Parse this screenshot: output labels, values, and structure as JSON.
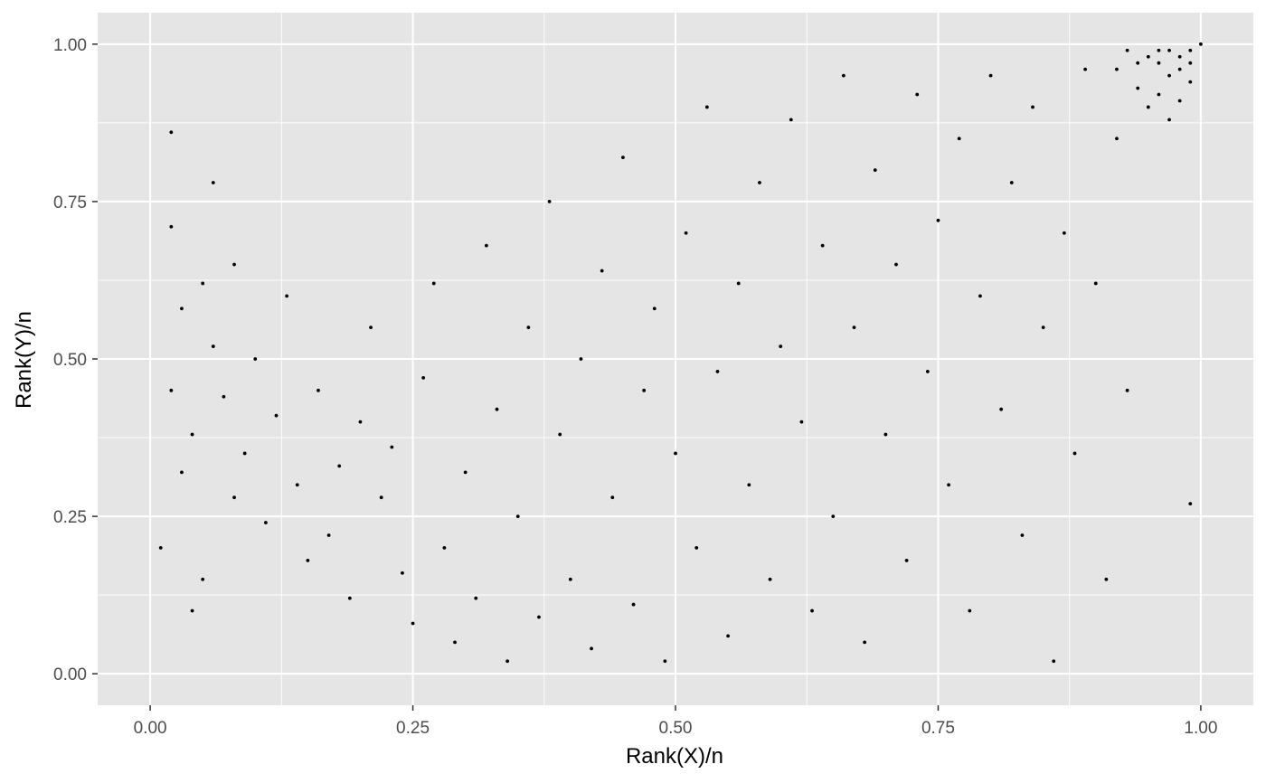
{
  "chart_data": {
    "type": "scatter",
    "title": "",
    "xlabel": "Rank(X)/n",
    "ylabel": "Rank(Y)/n",
    "xlim": [
      -0.05,
      1.05
    ],
    "ylim": [
      -0.05,
      1.05
    ],
    "x_ticks": [
      0,
      0.25,
      0.5,
      0.75,
      1
    ],
    "x_tick_labels": [
      "0.00",
      "0.25",
      "0.50",
      "0.75",
      "1.00"
    ],
    "y_ticks": [
      0,
      0.25,
      0.5,
      0.75,
      1
    ],
    "y_tick_labels": [
      "0.00",
      "0.25",
      "0.50",
      "0.75",
      "1.00"
    ],
    "grid": true,
    "legend": "none",
    "panel_background": "#e5e5e5",
    "grid_color": "#ffffff",
    "point_color": "#000000",
    "points": [
      [
        0.02,
        0.45
      ],
      [
        0.03,
        0.32
      ],
      [
        0.05,
        0.62
      ],
      [
        0.04,
        0.38
      ],
      [
        0.06,
        0.52
      ],
      [
        0.08,
        0.28
      ],
      [
        0.02,
        0.71
      ],
      [
        0.01,
        0.2
      ],
      [
        0.07,
        0.44
      ],
      [
        0.09,
        0.35
      ],
      [
        0.03,
        0.58
      ],
      [
        0.11,
        0.24
      ],
      [
        0.05,
        0.15
      ],
      [
        0.1,
        0.5
      ],
      [
        0.12,
        0.41
      ],
      [
        0.14,
        0.3
      ],
      [
        0.02,
        0.86
      ],
      [
        0.06,
        0.78
      ],
      [
        0.15,
        0.18
      ],
      [
        0.08,
        0.65
      ],
      [
        0.13,
        0.6
      ],
      [
        0.16,
        0.45
      ],
      [
        0.18,
        0.33
      ],
      [
        0.04,
        0.1
      ],
      [
        0.17,
        0.22
      ],
      [
        0.19,
        0.12
      ],
      [
        0.2,
        0.4
      ],
      [
        0.22,
        0.28
      ],
      [
        0.21,
        0.55
      ],
      [
        0.24,
        0.16
      ],
      [
        0.23,
        0.36
      ],
      [
        0.25,
        0.08
      ],
      [
        0.26,
        0.47
      ],
      [
        0.28,
        0.2
      ],
      [
        0.27,
        0.62
      ],
      [
        0.29,
        0.05
      ],
      [
        0.3,
        0.32
      ],
      [
        0.31,
        0.12
      ],
      [
        0.32,
        0.68
      ],
      [
        0.33,
        0.42
      ],
      [
        0.34,
        0.02
      ],
      [
        0.35,
        0.25
      ],
      [
        0.36,
        0.55
      ],
      [
        0.37,
        0.09
      ],
      [
        0.38,
        0.75
      ],
      [
        0.39,
        0.38
      ],
      [
        0.4,
        0.15
      ],
      [
        0.41,
        0.5
      ],
      [
        0.42,
        0.04
      ],
      [
        0.43,
        0.64
      ],
      [
        0.44,
        0.28
      ],
      [
        0.45,
        0.82
      ],
      [
        0.46,
        0.11
      ],
      [
        0.47,
        0.45
      ],
      [
        0.48,
        0.58
      ],
      [
        0.49,
        0.02
      ],
      [
        0.5,
        0.35
      ],
      [
        0.51,
        0.7
      ],
      [
        0.52,
        0.2
      ],
      [
        0.53,
        0.9
      ],
      [
        0.54,
        0.48
      ],
      [
        0.55,
        0.06
      ],
      [
        0.56,
        0.62
      ],
      [
        0.57,
        0.3
      ],
      [
        0.58,
        0.78
      ],
      [
        0.59,
        0.15
      ],
      [
        0.6,
        0.52
      ],
      [
        0.61,
        0.88
      ],
      [
        0.62,
        0.4
      ],
      [
        0.63,
        0.1
      ],
      [
        0.64,
        0.68
      ],
      [
        0.65,
        0.25
      ],
      [
        0.66,
        0.95
      ],
      [
        0.67,
        0.55
      ],
      [
        0.68,
        0.05
      ],
      [
        0.69,
        0.8
      ],
      [
        0.7,
        0.38
      ],
      [
        0.71,
        0.65
      ],
      [
        0.72,
        0.18
      ],
      [
        0.73,
        0.92
      ],
      [
        0.74,
        0.48
      ],
      [
        0.75,
        0.72
      ],
      [
        0.76,
        0.3
      ],
      [
        0.77,
        0.85
      ],
      [
        0.78,
        0.1
      ],
      [
        0.79,
        0.6
      ],
      [
        0.8,
        0.95
      ],
      [
        0.81,
        0.42
      ],
      [
        0.82,
        0.78
      ],
      [
        0.83,
        0.22
      ],
      [
        0.84,
        0.9
      ],
      [
        0.85,
        0.55
      ],
      [
        0.86,
        0.02
      ],
      [
        0.87,
        0.7
      ],
      [
        0.88,
        0.35
      ],
      [
        0.89,
        0.96
      ],
      [
        0.9,
        0.62
      ],
      [
        0.91,
        0.15
      ],
      [
        0.92,
        0.85
      ],
      [
        0.93,
        0.45
      ],
      [
        0.94,
        0.93
      ],
      [
        0.95,
        0.98
      ],
      [
        0.96,
        0.97
      ],
      [
        0.97,
        0.99
      ],
      [
        0.98,
        0.98
      ],
      [
        0.99,
        0.99
      ],
      [
        0.97,
        0.95
      ],
      [
        0.98,
        0.96
      ],
      [
        1.0,
        1.0
      ],
      [
        0.99,
        0.97
      ],
      [
        0.96,
        0.92
      ],
      [
        0.95,
        0.9
      ],
      [
        0.94,
        0.97
      ],
      [
        0.97,
        0.88
      ],
      [
        0.93,
        0.99
      ],
      [
        0.99,
        0.94
      ],
      [
        0.92,
        0.96
      ],
      [
        0.98,
        0.91
      ],
      [
        0.96,
        0.99
      ],
      [
        0.99,
        0.27
      ]
    ]
  }
}
